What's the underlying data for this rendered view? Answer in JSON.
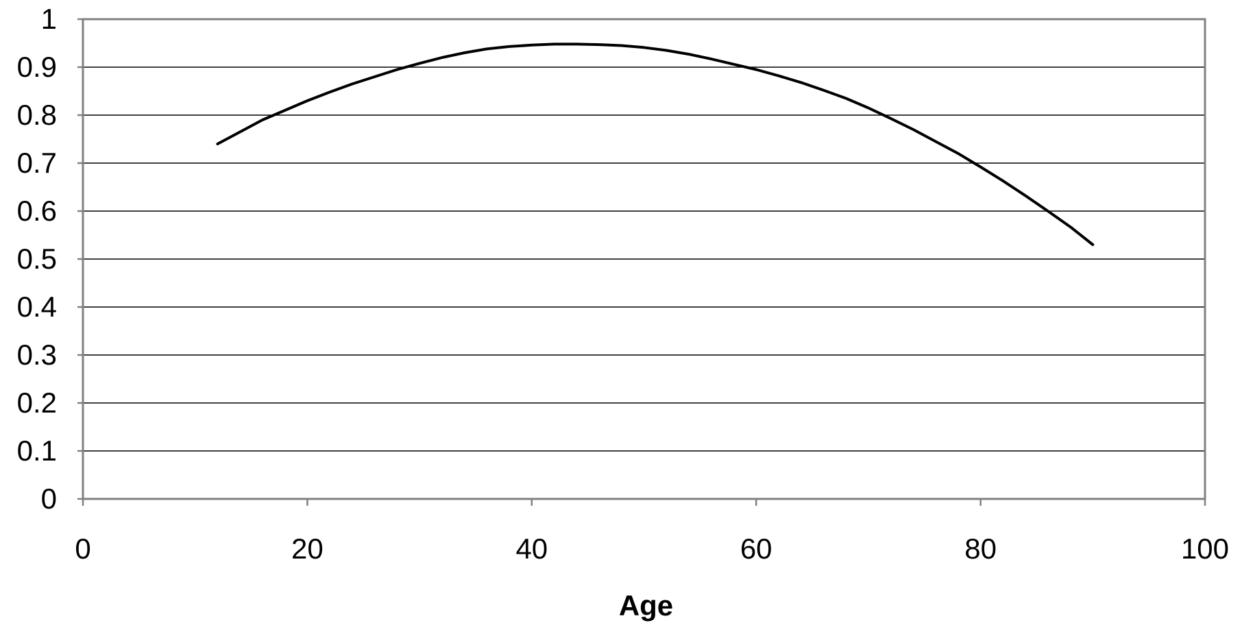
{
  "chart_data": {
    "type": "line",
    "title": "",
    "xlabel": "Age",
    "ylabel": "",
    "xlim": [
      0,
      100
    ],
    "ylim": [
      0,
      1
    ],
    "x_ticks": [
      "0",
      "20",
      "40",
      "60",
      "80",
      "100"
    ],
    "y_ticks": [
      "0",
      "0.1",
      "0.2",
      "0.3",
      "0.4",
      "0.5",
      "0.6",
      "0.7",
      "0.8",
      "0.9",
      "1"
    ],
    "grid": "horizontal",
    "legend": "none",
    "colors": {
      "line": "#000000",
      "grid": "#000000",
      "frame": "#808080",
      "background": "#ffffff"
    },
    "series": [
      {
        "x": [
          12,
          14,
          16,
          18,
          20,
          22,
          24,
          26,
          28,
          30,
          32,
          34,
          36,
          38,
          40,
          42,
          44,
          46,
          48,
          50,
          52,
          54,
          56,
          58,
          60,
          62,
          64,
          66,
          68,
          70,
          72,
          74,
          76,
          78,
          80,
          82,
          84,
          86,
          88,
          90
        ],
        "y": [
          0.74,
          0.765,
          0.79,
          0.81,
          0.83,
          0.848,
          0.865,
          0.88,
          0.895,
          0.908,
          0.92,
          0.93,
          0.938,
          0.943,
          0.946,
          0.948,
          0.948,
          0.947,
          0.945,
          0.941,
          0.935,
          0.927,
          0.917,
          0.906,
          0.895,
          0.882,
          0.868,
          0.852,
          0.835,
          0.815,
          0.793,
          0.77,
          0.745,
          0.72,
          0.692,
          0.663,
          0.632,
          0.6,
          0.567,
          0.53
        ]
      }
    ]
  }
}
